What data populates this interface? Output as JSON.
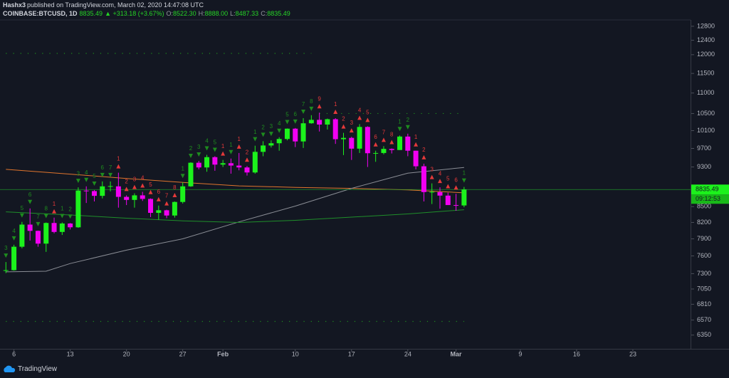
{
  "header": {
    "author": "Hashx3",
    "published": "published on TradingView.com, March 02, 2020 14:47:08 UTC",
    "symbol": "COINBASE:BTCUSD, 1D",
    "price": "8835.49",
    "change": "▲ +313.18 (+3.67%)",
    "ohlc": [
      {
        "key": "O:",
        "value": "8522.30"
      },
      {
        "key": "H:",
        "value": "8888.00"
      },
      {
        "key": "L:",
        "value": "8487.33"
      },
      {
        "key": "C:",
        "value": "8835.49"
      }
    ]
  },
  "chart_data": {
    "type": "candlestick",
    "log": true,
    "x": [
      "2020-01-05",
      "2020-01-06",
      "2020-01-07",
      "2020-01-08",
      "2020-01-09",
      "2020-01-10",
      "2020-01-11",
      "2020-01-12",
      "2020-01-13",
      "2020-01-14",
      "2020-01-15",
      "2020-01-16",
      "2020-01-17",
      "2020-01-18",
      "2020-01-19",
      "2020-01-20",
      "2020-01-21",
      "2020-01-22",
      "2020-01-23",
      "2020-01-24",
      "2020-01-25",
      "2020-01-26",
      "2020-01-27",
      "2020-01-28",
      "2020-01-29",
      "2020-01-30",
      "2020-01-31",
      "2020-02-01",
      "2020-02-02",
      "2020-02-03",
      "2020-02-04",
      "2020-02-05",
      "2020-02-06",
      "2020-02-07",
      "2020-02-08",
      "2020-02-09",
      "2020-02-10",
      "2020-02-11",
      "2020-02-12",
      "2020-02-13",
      "2020-02-14",
      "2020-02-15",
      "2020-02-16",
      "2020-02-17",
      "2020-02-18",
      "2020-02-19",
      "2020-02-20",
      "2020-02-21",
      "2020-02-22",
      "2020-02-23",
      "2020-02-24",
      "2020-02-25",
      "2020-02-26",
      "2020-02-27",
      "2020-02-28",
      "2020-02-29",
      "2020-03-01",
      "2020-03-02"
    ],
    "open": [
      7355,
      7358,
      7760,
      8160,
      8045,
      7815,
      8190,
      8025,
      8180,
      8110,
      8815,
      8805,
      8710,
      8900,
      8900,
      8690,
      8630,
      8720,
      8650,
      8380,
      8430,
      8330,
      8590,
      8900,
      9390,
      9290,
      9510,
      9350,
      9380,
      9330,
      9290,
      9185,
      9625,
      9765,
      9815,
      9910,
      10145,
      9855,
      10270,
      10350,
      10240,
      10365,
      9905,
      9935,
      9695,
      10185,
      9595,
      9600,
      9690,
      9665,
      9965,
      9650,
      9315,
      8785,
      8785,
      8715,
      8530,
      8522.3
    ],
    "high": [
      7495,
      7795,
      8210,
      8465,
      8050,
      8200,
      8290,
      8200,
      8190,
      8880,
      8900,
      8825,
      9000,
      9000,
      9180,
      8720,
      8760,
      8790,
      8660,
      8520,
      8440,
      8600,
      8980,
      9400,
      9430,
      9560,
      9530,
      9450,
      9480,
      9600,
      9320,
      9760,
      9860,
      9880,
      9950,
      10150,
      10160,
      10390,
      10460,
      10520,
      10380,
      10390,
      10050,
      9960,
      10250,
      10200,
      9650,
      9750,
      9700,
      9990,
      10030,
      9650,
      9370,
      8960,
      8880,
      8775,
      8750,
      8888
    ],
    "low": [
      7310,
      7350,
      7733,
      7870,
      7760,
      7670,
      8000,
      7970,
      8070,
      8100,
      8570,
      8600,
      8660,
      8800,
      8480,
      8530,
      8480,
      8610,
      8300,
      8250,
      8280,
      8290,
      8560,
      8890,
      9250,
      9200,
      9220,
      9300,
      9160,
      9230,
      9120,
      9160,
      9530,
      9720,
      9650,
      9880,
      9730,
      9710,
      10260,
      10080,
      10125,
      9800,
      9555,
      9450,
      9600,
      9300,
      9410,
      9570,
      9590,
      9665,
      9530,
      9250,
      8600,
      8550,
      8460,
      8530,
      8420,
      8487.33
    ],
    "close": [
      7358,
      7760,
      8160,
      8045,
      7815,
      8190,
      8025,
      8180,
      8110,
      8815,
      8805,
      8710,
      8900,
      8905,
      8690,
      8630,
      8720,
      8650,
      8380,
      8430,
      8330,
      8590,
      8900,
      9390,
      9290,
      9510,
      9350,
      9380,
      9330,
      9290,
      9185,
      9625,
      9765,
      9815,
      9910,
      10145,
      9855,
      10270,
      10350,
      10240,
      10365,
      9905,
      9935,
      9695,
      10185,
      9595,
      9600,
      9690,
      9665,
      9965,
      9650,
      9315,
      8785,
      8790,
      8715,
      8530,
      8520,
      8835.49
    ],
    "up_color": "#1cf21c",
    "down_color": "#f200f2",
    "ylim": [
      6155,
      12985
    ],
    "yticks": [
      12800,
      12400,
      12000,
      11500,
      11000,
      10500,
      10100,
      9700,
      9300,
      8500,
      8200,
      7900,
      7600,
      7300,
      7050,
      6810,
      6570,
      6350
    ],
    "xlim": [
      "2020-01-04",
      "2020-03-30"
    ],
    "xticks": [
      {
        "value": "2020-01-06",
        "label": "6"
      },
      {
        "value": "2020-01-13",
        "label": "13"
      },
      {
        "value": "2020-01-20",
        "label": "20"
      },
      {
        "value": "2020-01-27",
        "label": "27"
      },
      {
        "value": "2020-02-01",
        "label": "Feb"
      },
      {
        "value": "2020-02-10",
        "label": "10"
      },
      {
        "value": "2020-02-17",
        "label": "17"
      },
      {
        "value": "2020-02-24",
        "label": "24"
      },
      {
        "value": "2020-03-01",
        "label": "Mar"
      },
      {
        "value": "2020-03-09",
        "label": "9"
      },
      {
        "value": "2020-03-16",
        "label": "16"
      },
      {
        "value": "2020-03-23",
        "label": "23"
      }
    ],
    "setup_counts": [
      3,
      4,
      5,
      6,
      7,
      8,
      1,
      1,
      2,
      3,
      4,
      5,
      6,
      7,
      1,
      2,
      3,
      4,
      5,
      6,
      7,
      8,
      1,
      2,
      3,
      4,
      5,
      1,
      1,
      1,
      2,
      1,
      2,
      3,
      4,
      5,
      6,
      7,
      8,
      9,
      null,
      1,
      2,
      3,
      4,
      5,
      6,
      7,
      8,
      1,
      2,
      1,
      2,
      3,
      4,
      5,
      6,
      1
    ],
    "setup_colors": [
      "#1e8c1e",
      "#1e8c1e",
      "#1e8c1e",
      "#1e8c1e",
      "#1e8c1e",
      "#1e8c1e",
      "#e5393a",
      "#1e8c1e",
      "#1e8c1e",
      "#1e8c1e",
      "#1e8c1e",
      "#1e8c1e",
      "#1e8c1e",
      "#1e8c1e",
      "#e5393a",
      "#e5393a",
      "#e5393a",
      "#e5393a",
      "#e5393a",
      "#e5393a",
      "#e5393a",
      "#e5393a",
      "#1e8c1e",
      "#1e8c1e",
      "#1e8c1e",
      "#1e8c1e",
      "#1e8c1e",
      "#e5393a",
      "#1e8c1e",
      "#e5393a",
      "#e5393a",
      "#1e8c1e",
      "#1e8c1e",
      "#1e8c1e",
      "#1e8c1e",
      "#1e8c1e",
      "#1e8c1e",
      "#1e8c1e",
      "#1e8c1e",
      "#e5393a",
      null,
      "#e5393a",
      "#e5393a",
      "#e5393a",
      "#e5393a",
      "#e5393a",
      "#e5393a",
      "#e5393a",
      "#e5393a",
      "#1e8c1e",
      "#1e8c1e",
      "#e5393a",
      "#e5393a",
      "#e5393a",
      "#e5393a",
      "#e5393a",
      "#e5393a",
      "#1e8c1e"
    ],
    "lines": [
      {
        "color": "#e0752d",
        "x": [
          "2020-01-05",
          "2020-01-13",
          "2020-01-20",
          "2020-01-27",
          "2020-02-03",
          "2020-02-10",
          "2020-02-17",
          "2020-02-24",
          "2020-03-02"
        ],
        "values": [
          9250,
          9150,
          9060,
          8980,
          8910,
          8880,
          8860,
          8830,
          8770
        ]
      },
      {
        "color": "#8a8d95",
        "x": [
          "2020-01-05",
          "2020-01-10",
          "2020-01-13",
          "2020-01-20",
          "2020-01-27",
          "2020-02-03",
          "2020-02-10",
          "2020-02-17",
          "2020-02-24",
          "2020-03-02"
        ],
        "values": [
          7330,
          7340,
          7470,
          7700,
          7900,
          8210,
          8510,
          8860,
          9170,
          9290
        ]
      },
      {
        "color": "#1f8f2a",
        "x": [
          "2020-01-05",
          "2020-01-13",
          "2020-01-20",
          "2020-01-27",
          "2020-02-03",
          "2020-02-10",
          "2020-02-17",
          "2020-02-24",
          "2020-03-02"
        ],
        "values": [
          8400,
          8340,
          8280,
          8230,
          8200,
          8240,
          8300,
          8360,
          8440
        ]
      }
    ],
    "levels": [
      {
        "value": 12035,
        "from": "2020-01-05",
        "to": "2020-02-12",
        "color": "#1e8c1e"
      },
      {
        "value": 10500,
        "from": "2020-02-13",
        "to": "2020-03-02",
        "color": "#1e8c1e"
      },
      {
        "value": 6550,
        "from": "2020-01-05",
        "to": "2020-03-02",
        "color": "#1e8c1e"
      }
    ],
    "last_price_label": "8835.49",
    "countdown": "09:12:53"
  },
  "footer": {
    "brand": "TradingView"
  }
}
